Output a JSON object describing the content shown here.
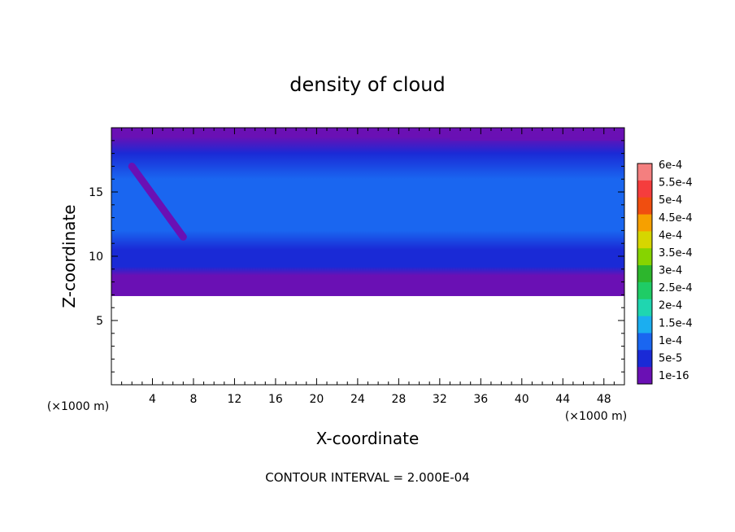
{
  "chart_data": {
    "type": "heatmap",
    "title": "density of cloud",
    "xlabel": "X-coordinate",
    "ylabel": "Z-coordinate",
    "x_unit": "(×1000 m)",
    "y_unit": "(×1000 m)",
    "xlim": [
      0,
      50
    ],
    "ylim": [
      0,
      20
    ],
    "x_ticks": [
      "4",
      "8",
      "12",
      "16",
      "20",
      "24",
      "28",
      "32",
      "36",
      "40",
      "44",
      "48"
    ],
    "y_ticks": [
      "5",
      "10",
      "15"
    ],
    "x_tick_values": [
      4,
      8,
      12,
      16,
      20,
      24,
      28,
      32,
      36,
      40,
      44,
      48
    ],
    "y_tick_values": [
      5,
      10,
      15
    ],
    "cloud_base": 6.9,
    "cloud_top": 20,
    "profile": [
      {
        "z": 6.9,
        "value": 0.0
      },
      {
        "z": 7.5,
        "value": 1.5e-05
      },
      {
        "z": 8.5,
        "value": 3e-05
      },
      {
        "z": 9.2,
        "value": 6e-05
      },
      {
        "z": 10.5,
        "value": 9e-05
      },
      {
        "z": 12.0,
        "value": 0.00012
      },
      {
        "z": 14.0,
        "value": 0.00014
      },
      {
        "z": 16.0,
        "value": 0.00012
      },
      {
        "z": 18.0,
        "value": 8e-05
      },
      {
        "z": 19.3,
        "value": 3e-05
      },
      {
        "z": 20.0,
        "value": 1e-05
      }
    ],
    "features": [
      {
        "kind": "streak",
        "x": [
          2,
          7
        ],
        "z": [
          17,
          11.5
        ],
        "value": 5e-06
      },
      {
        "kind": "patch",
        "x": [
          33,
          50
        ],
        "z": [
          19,
          20
        ],
        "value": 1e-05
      }
    ],
    "colorbar": {
      "labels": [
        "6e-4",
        "5.5e-4",
        "5e-4",
        "4.5e-4",
        "4e-4",
        "3.5e-4",
        "3e-4",
        "2.5e-4",
        "2e-4",
        "1.5e-4",
        "1e-4",
        "5e-5",
        "1e-16"
      ],
      "colors": [
        "#f47f7f",
        "#f53d3d",
        "#f04e10",
        "#f6a000",
        "#d6d600",
        "#86d400",
        "#2db62d",
        "#1fcc66",
        "#1fd6b0",
        "#1baef0",
        "#1a66f0",
        "#1a2ad6",
        "#6a10b4"
      ]
    },
    "legend_position": "right",
    "grid": false
  },
  "footer": {
    "contour_interval": "CONTOUR INTERVAL = 2.000E-04"
  }
}
